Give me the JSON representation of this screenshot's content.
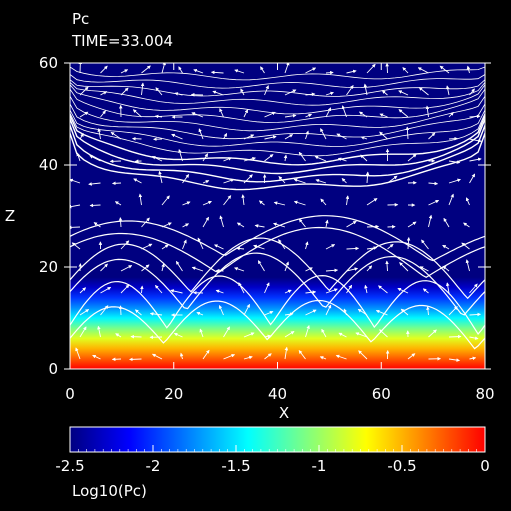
{
  "chart_data": {
    "type": "heatmap",
    "title": "Pc",
    "subtitle": "TIME=33.004",
    "xlabel": "X",
    "ylabel": "Z",
    "xlim": [
      0,
      80
    ],
    "ylim": [
      0,
      60
    ],
    "x_ticks": [
      0,
      20,
      40,
      60,
      80
    ],
    "y_ticks": [
      0,
      20,
      40,
      60
    ],
    "colorbar": {
      "label": "Log10(Pc)",
      "range": [
        -2.5,
        0
      ],
      "ticks": [
        -2.5,
        -2,
        -1.5,
        -1,
        -0.5,
        0
      ],
      "tick_labels": [
        "-2.5",
        "-2",
        "-1.5",
        "-1",
        "-0.5",
        "0"
      ],
      "colors": [
        "#000080",
        "#0000ff",
        "#0080ff",
        "#00ffff",
        "#80ff80",
        "#ffff00",
        "#ff8000",
        "#ff0000"
      ]
    },
    "field_profile": {
      "z_levels": [
        0,
        2,
        4,
        6,
        8,
        10,
        12,
        14,
        16,
        18
      ],
      "log10_pc": [
        0,
        -0.25,
        -0.5,
        -0.8,
        -1.1,
        -1.45,
        -1.75,
        -2.0,
        -2.3,
        -2.5
      ]
    },
    "overlays": {
      "contours": "white field lines",
      "vectors": "white velocity arrows"
    }
  }
}
